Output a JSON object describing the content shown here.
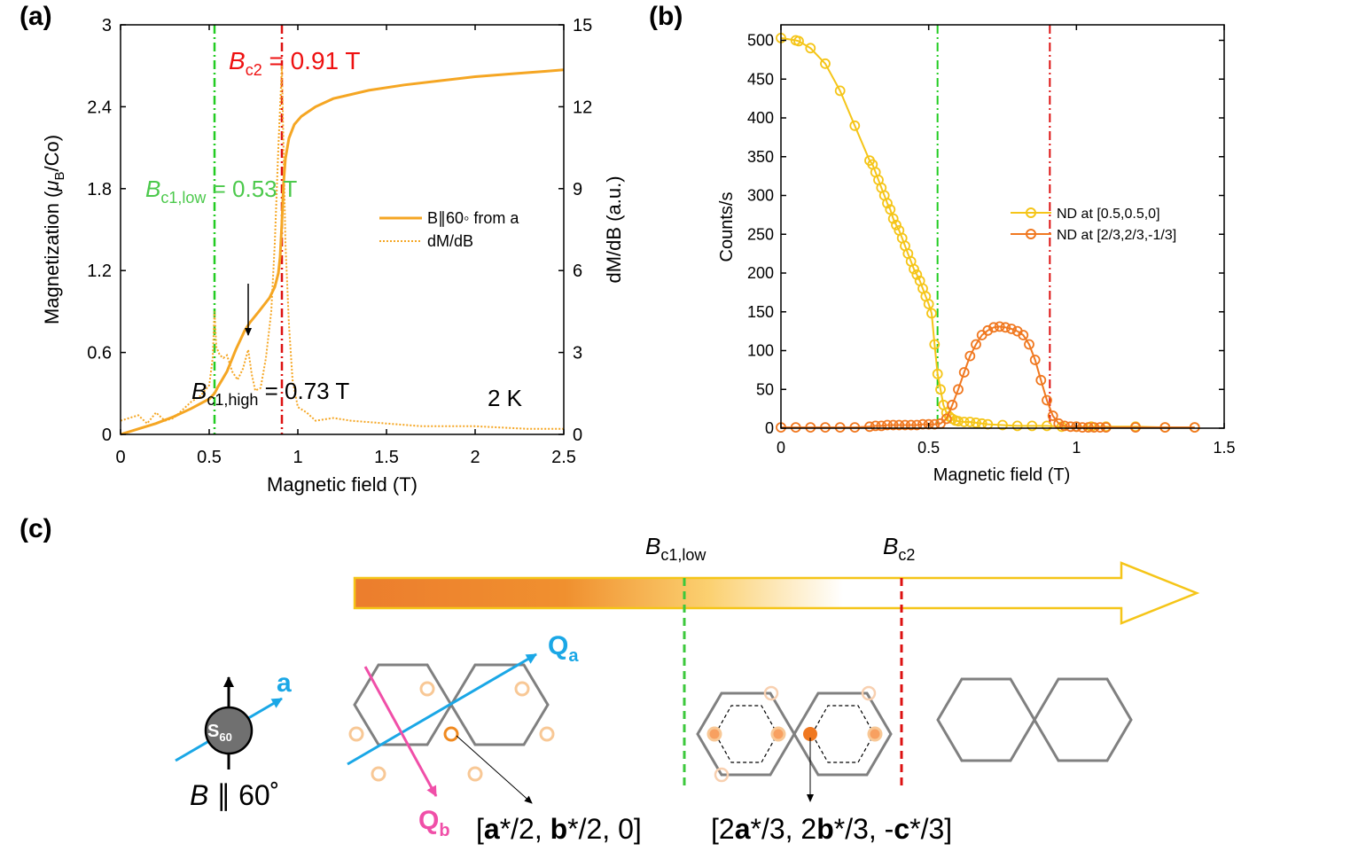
{
  "panels": {
    "a": "(a)",
    "b": "(b)",
    "c": "(c)"
  },
  "chart_data": [
    {
      "type": "line",
      "panel": "(a)",
      "xlabel": "Magnetic field (T)",
      "ylabel_left": "Magnetization (μB/Co)",
      "ylabel_right": "dM/dB (a.u.)",
      "xlim": [
        0,
        2.5
      ],
      "ylim_left": [
        0,
        3
      ],
      "ylim_right": [
        0,
        15
      ],
      "xticks": [
        0,
        0.5,
        1,
        1.5,
        2,
        2.5
      ],
      "xtick_labels": [
        "0",
        "0.5",
        "1",
        "1.5",
        "2",
        "2.5"
      ],
      "yticks_left": [
        0,
        0.6,
        1.2,
        1.8,
        2.4,
        3
      ],
      "ytick_labels_left": [
        "0",
        "0.6",
        "1.2",
        "1.8",
        "2.4",
        "3"
      ],
      "yticks_right": [
        0,
        3,
        6,
        9,
        12,
        15
      ],
      "ytick_labels_right": [
        "0",
        "3",
        "6",
        "9",
        "12",
        "15"
      ],
      "legend": [
        "B∥60◦ from a",
        "dM/dB"
      ],
      "series": [
        {
          "name": "B∥60◦ from a",
          "axis": "left",
          "style": "solid",
          "color": "#f5a623",
          "x": [
            0,
            0.1,
            0.2,
            0.3,
            0.4,
            0.5,
            0.53,
            0.55,
            0.6,
            0.65,
            0.7,
            0.73,
            0.78,
            0.84,
            0.87,
            0.89,
            0.9,
            0.91,
            0.92,
            0.93,
            0.95,
            0.98,
            1.02,
            1.1,
            1.2,
            1.4,
            1.6,
            1.8,
            2.0,
            2.2,
            2.4,
            2.5
          ],
          "y": [
            0,
            0.04,
            0.08,
            0.13,
            0.19,
            0.26,
            0.3,
            0.35,
            0.46,
            0.62,
            0.76,
            0.82,
            0.9,
            1.0,
            1.08,
            1.18,
            1.3,
            1.55,
            1.85,
            2.02,
            2.17,
            2.27,
            2.33,
            2.4,
            2.46,
            2.52,
            2.56,
            2.59,
            2.62,
            2.64,
            2.66,
            2.67
          ]
        },
        {
          "name": "dM/dB",
          "axis": "right",
          "style": "dotted",
          "color": "#f5a623",
          "x": [
            0,
            0.05,
            0.1,
            0.15,
            0.2,
            0.25,
            0.3,
            0.35,
            0.4,
            0.45,
            0.5,
            0.52,
            0.53,
            0.54,
            0.56,
            0.58,
            0.6,
            0.63,
            0.66,
            0.69,
            0.72,
            0.74,
            0.76,
            0.79,
            0.82,
            0.85,
            0.87,
            0.89,
            0.91,
            0.93,
            0.95,
            0.97,
            1.0,
            1.05,
            1.1,
            1.2,
            1.3,
            1.5,
            1.7,
            2.0,
            2.3,
            2.5
          ],
          "y": [
            0.5,
            0.6,
            0.7,
            0.4,
            0.8,
            0.5,
            0.6,
            0.9,
            1.2,
            1.4,
            1.8,
            2.8,
            4.5,
            3.2,
            2.9,
            2.8,
            2.9,
            2.3,
            2.0,
            2.4,
            3.1,
            2.2,
            1.6,
            1.7,
            2.8,
            4.5,
            7.0,
            10.5,
            13.5,
            7.0,
            4.0,
            2.0,
            1.0,
            0.8,
            0.5,
            0.6,
            0.5,
            0.4,
            0.3,
            0.3,
            0.2,
            0.2
          ]
        }
      ],
      "vlines": [
        {
          "x": 0.53,
          "color": "#22cc22",
          "style": "dash-dot"
        },
        {
          "x": 0.91,
          "color": "#dd1111",
          "style": "dash-dot"
        }
      ],
      "annotations": {
        "bc2_main": "B",
        "bc2_sub": "c2",
        "bc2_value": " = 0.91 T",
        "bc1low_main": "B",
        "bc1low_sub": "c1,low",
        "bc1low_value": " = 0.53 T",
        "bc1high_main": "B",
        "bc1high_sub": "c1,high",
        "bc1high_value": " = 0.73 T",
        "temperature": "2 K"
      }
    },
    {
      "type": "line",
      "panel": "(b)",
      "xlabel": "Magnetic field (T)",
      "ylabel": "Counts/s",
      "xlim": [
        0,
        1.5
      ],
      "ylim": [
        0,
        520
      ],
      "xticks": [
        0,
        0.5,
        1,
        1.5
      ],
      "xtick_labels": [
        "0",
        "0.5",
        "1",
        "1.5"
      ],
      "yticks": [
        0,
        50,
        100,
        150,
        200,
        250,
        300,
        350,
        400,
        450,
        500
      ],
      "ytick_labels": [
        "0",
        "50",
        "100",
        "150",
        "200",
        "250",
        "300",
        "350",
        "400",
        "450",
        "500"
      ],
      "legend": [
        "ND at [0.5,0.5,0]",
        "ND at [2/3,2/3,-1/3]"
      ],
      "series": [
        {
          "name": "ND at [0.5,0.5,0]",
          "color": "#f5c518",
          "x": [
            0,
            0.05,
            0.06,
            0.1,
            0.15,
            0.2,
            0.25,
            0.3,
            0.31,
            0.32,
            0.33,
            0.34,
            0.35,
            0.36,
            0.37,
            0.38,
            0.39,
            0.4,
            0.41,
            0.42,
            0.43,
            0.44,
            0.45,
            0.46,
            0.47,
            0.48,
            0.49,
            0.5,
            0.51,
            0.52,
            0.53,
            0.54,
            0.55,
            0.56,
            0.57,
            0.58,
            0.59,
            0.6,
            0.62,
            0.64,
            0.66,
            0.68,
            0.7,
            0.75,
            0.8,
            0.85,
            0.9,
            0.95,
            1.0,
            1.05,
            1.1,
            1.2,
            1.3,
            1.4
          ],
          "y": [
            503,
            500,
            499,
            490,
            470,
            435,
            390,
            345,
            340,
            330,
            320,
            310,
            300,
            290,
            282,
            270,
            262,
            255,
            245,
            235,
            225,
            215,
            205,
            198,
            190,
            180,
            170,
            160,
            148,
            108,
            70,
            50,
            30,
            20,
            15,
            12,
            10,
            9,
            8,
            8,
            7,
            6,
            5,
            4,
            3,
            3,
            3,
            2,
            2,
            2,
            2,
            2,
            1,
            1
          ]
        },
        {
          "name": "ND at [2/3,2/3,-1/3]",
          "color": "#f07820",
          "x": [
            0,
            0.05,
            0.1,
            0.15,
            0.2,
            0.25,
            0.3,
            0.32,
            0.34,
            0.36,
            0.38,
            0.4,
            0.42,
            0.44,
            0.46,
            0.48,
            0.5,
            0.52,
            0.54,
            0.56,
            0.58,
            0.6,
            0.62,
            0.64,
            0.66,
            0.68,
            0.7,
            0.72,
            0.74,
            0.76,
            0.78,
            0.8,
            0.82,
            0.84,
            0.86,
            0.88,
            0.9,
            0.92,
            0.94,
            0.96,
            0.98,
            1.0,
            1.02,
            1.04,
            1.06,
            1.08,
            1.1,
            1.2,
            1.3,
            1.4
          ],
          "y": [
            1,
            1,
            1,
            1,
            1,
            1,
            2,
            3,
            3,
            4,
            4,
            4,
            4,
            4,
            4,
            5,
            5,
            5,
            6,
            12,
            30,
            50,
            72,
            93,
            108,
            120,
            126,
            130,
            131,
            130,
            128,
            125,
            120,
            108,
            88,
            62,
            36,
            16,
            6,
            3,
            2,
            2,
            1,
            1,
            1,
            1,
            1,
            1,
            1,
            1
          ]
        }
      ],
      "vlines": [
        {
          "x": 0.53,
          "color": "#22cc22",
          "style": "dash-dot"
        },
        {
          "x": 0.91,
          "color": "#dd1111",
          "style": "dash-dot"
        }
      ]
    }
  ],
  "diagram": {
    "arrow_label_low_main": "B",
    "arrow_label_low_sub": "c1,low",
    "arrow_label_c2_main": "B",
    "arrow_label_c2_sub": "c2",
    "spin_main": "S",
    "spin_sub": "60",
    "a_label": "a",
    "field_label_main": "B",
    "field_label_rest": " ∥ 60˚",
    "qa_main": "Q",
    "qa_sub": "a",
    "qb_main": "Q",
    "qb_sub": "b",
    "q1_label_parts": [
      "[",
      "a",
      "*/2, ",
      "b",
      "*/2, 0]"
    ],
    "q2_label_parts": [
      "[2",
      "a",
      "*/3, 2",
      "b",
      "*/3, -",
      "c",
      "*/3]"
    ],
    "colors": {
      "yellow": "#f5c518",
      "orange": "#f07820",
      "green": "#3cc83c",
      "red": "#dd1111",
      "cyan": "#1aa7e6",
      "pink": "#f04fa8",
      "gray": "#808080"
    }
  }
}
